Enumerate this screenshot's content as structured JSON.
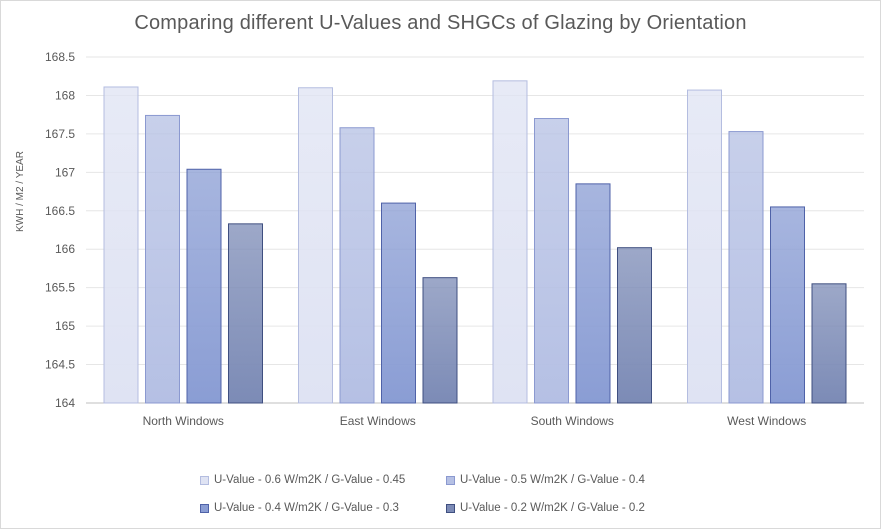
{
  "chart_data": {
    "type": "bar",
    "title": "Comparing different U-Values and SHGCs of Glazing by Orientation",
    "xlabel": "",
    "ylabel": "KWH / M2 / YEAR",
    "ylim": [
      164,
      168.5
    ],
    "yticks": [
      164,
      164.5,
      165,
      165.5,
      166,
      166.5,
      167,
      167.5,
      168,
      168.5
    ],
    "ytick_labels": [
      "164",
      "164.5",
      "165",
      "165.5",
      "166",
      "166.5",
      "167",
      "167.5",
      "168",
      "168.5"
    ],
    "grid": true,
    "legend_position": "bottom",
    "categories": [
      "North Windows",
      "East Windows",
      "South Windows",
      "West Windows"
    ],
    "series": [
      {
        "name": "U-Value -  0.6 W/m2K   /   G-Value - 0.45",
        "color": "#dfe3f3",
        "stroke": "#b4bde0",
        "values": [
          168.11,
          168.1,
          168.19,
          168.07
        ]
      },
      {
        "name": "U-Value -  0.5 W/m2K   /   G-Value - 0.4",
        "color": "#b5c0e4",
        "stroke": "#8b99d0",
        "values": [
          167.74,
          167.58,
          167.7,
          167.53
        ]
      },
      {
        "name": "U-Value -  0.4 W/m2K   /   G-Value - 0.3",
        "color": "#8a9dd4",
        "stroke": "#4f62a8",
        "values": [
          167.04,
          166.6,
          166.85,
          166.55
        ]
      },
      {
        "name": "U-Value -  0.2 W/m2K   /   G-Value - 0.2",
        "color": "#7c8bb6",
        "stroke": "#3f4f80",
        "values": [
          166.33,
          165.63,
          166.02,
          165.55
        ]
      }
    ]
  }
}
